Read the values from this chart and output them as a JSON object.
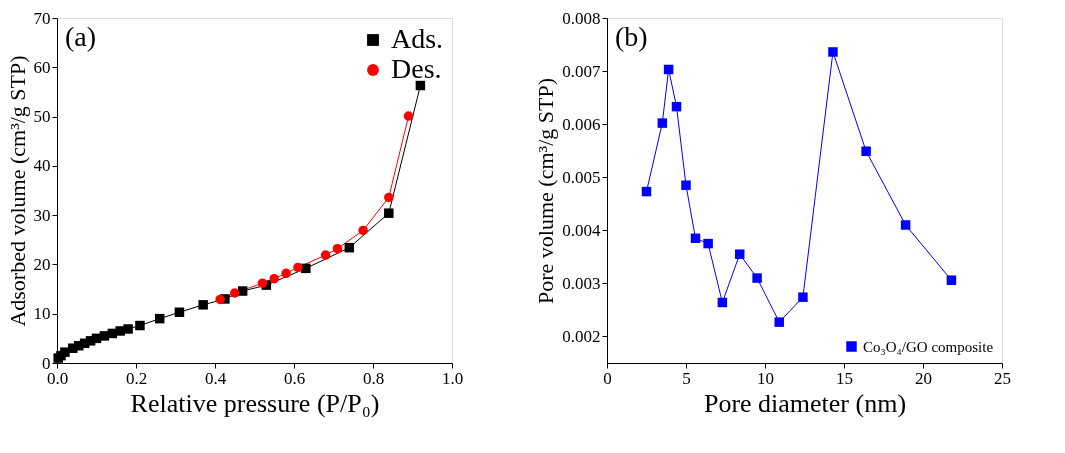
{
  "chart_data": [
    {
      "type": "line",
      "xlabel": "Relative pressure (P/P₀)",
      "ylabel": "Adsorbed volume (cm³/g  STP)",
      "annotations": [
        "(a)"
      ],
      "xlim": [
        0,
        1
      ],
      "xticks": [
        {
          "value": 0,
          "label": "0.0"
        },
        0.2,
        0.4,
        0.6,
        0.8,
        {
          "value": 1,
          "label": "1.0"
        }
      ],
      "ylim": [
        0,
        70
      ],
      "yticks": [
        0,
        10,
        20,
        30,
        40,
        50,
        60,
        70
      ],
      "grid": false,
      "legend": "top right",
      "series": [
        {
          "name": "Ads.",
          "color": "#000000",
          "marker": "square",
          "x": [
            0.003,
            0.01,
            0.02,
            0.04,
            0.055,
            0.07,
            0.085,
            0.1,
            0.12,
            0.14,
            0.16,
            0.18,
            0.21,
            0.26,
            0.31,
            0.37,
            0.425,
            0.47,
            0.53,
            0.63,
            0.74,
            0.84,
            0.92
          ],
          "values": [
            1.0,
            1.5,
            2.2,
            3.0,
            3.5,
            4.0,
            4.5,
            5.0,
            5.5,
            6.0,
            6.5,
            6.9,
            7.6,
            9.0,
            10.3,
            11.8,
            13.0,
            14.6,
            15.8,
            19.2,
            23.4,
            30.4,
            56.3
          ]
        },
        {
          "name": "Des.",
          "color": "#ff0000",
          "marker": "circle",
          "x": [
            0.413,
            0.45,
            0.52,
            0.55,
            0.58,
            0.61,
            0.68,
            0.71,
            0.775,
            0.84,
            0.89
          ],
          "values": [
            12.9,
            14.2,
            16.2,
            17.1,
            18.2,
            19.4,
            21.9,
            23.2,
            26.9,
            33.6,
            50.1
          ]
        }
      ]
    },
    {
      "type": "line",
      "xlabel": "Pore diameter (nm)",
      "ylabel": "Pore volume (cm³/g  STP)",
      "annotations": [
        "(b)"
      ],
      "xlim": [
        0,
        25
      ],
      "xticks": [
        0,
        5,
        10,
        15,
        20,
        25
      ],
      "ylim": [
        0.0015,
        0.008
      ],
      "yticks": [
        0.002,
        0.003,
        0.004,
        0.005,
        0.006,
        0.007,
        0.008
      ],
      "grid": false,
      "legend": "bottom right",
      "series": [
        {
          "name": "Co₃O₄/GO composite",
          "color": "#0000ff",
          "marker": "square",
          "x": [
            2.5,
            3.5,
            3.9,
            4.4,
            5.0,
            5.6,
            6.4,
            7.3,
            8.4,
            9.5,
            10.9,
            12.4,
            14.3,
            16.4,
            18.9,
            21.8
          ],
          "values": [
            0.00473,
            0.00602,
            0.00703,
            0.00633,
            0.00485,
            0.00385,
            0.00375,
            0.00264,
            0.00355,
            0.0031,
            0.00227,
            0.00274,
            0.00736,
            0.00549,
            0.0041,
            0.00306
          ]
        }
      ]
    }
  ]
}
